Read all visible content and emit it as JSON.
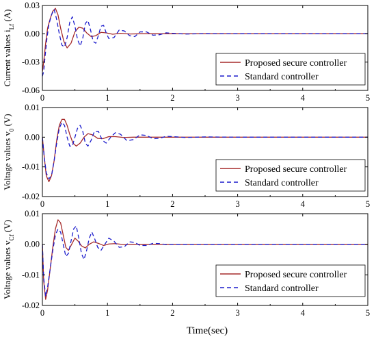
{
  "figure": {
    "xlabel": "Time(sec)"
  },
  "chart_data": [
    {
      "type": "line",
      "ylabel_main": "Current values i",
      "ylabel_sub": "Lf",
      "ylabel_unit": " (A)",
      "xlim": [
        0,
        5
      ],
      "ylim": [
        -0.06,
        0.03
      ],
      "x_ticks": [
        0,
        1,
        2,
        3,
        4,
        5
      ],
      "y_ticks": [
        {
          "value": 0.03,
          "label": "0.03"
        },
        {
          "value": 0.0,
          "label": "0.00"
        },
        {
          "value": -0.03,
          "label": "-0.03"
        },
        {
          "value": -0.06,
          "label": "-0.06"
        }
      ],
      "legend_position": "right",
      "series": [
        {
          "name": "Proposed secure controller",
          "color": "#a52a2a",
          "dash": "solid",
          "x": [
            0,
            0.02,
            0.05,
            0.08,
            0.12,
            0.16,
            0.2,
            0.24,
            0.28,
            0.33,
            0.38,
            0.44,
            0.5,
            0.56,
            0.62,
            0.68,
            0.75,
            0.82,
            0.9,
            0.98,
            1.08,
            1.2,
            1.35,
            1.5,
            1.8,
            2.2,
            3.0,
            4.0,
            5.0
          ],
          "y": [
            -0.04,
            -0.03,
            -0.01,
            0.006,
            0.016,
            0.024,
            0.027,
            0.02,
            0.006,
            -0.008,
            -0.015,
            -0.01,
            0.002,
            0.007,
            0.006,
            0.001,
            -0.003,
            -0.002,
            0.0015,
            0.001,
            -0.0005,
            0.0005,
            -0.0002,
            0.0,
            0.0,
            0.0,
            0.0,
            0.0,
            0.0
          ]
        },
        {
          "name": "Standard controller",
          "color": "#1c1ccc",
          "dash": "dashed",
          "x": [
            0,
            0.02,
            0.04,
            0.07,
            0.1,
            0.14,
            0.18,
            0.22,
            0.26,
            0.3,
            0.34,
            0.38,
            0.42,
            0.46,
            0.5,
            0.54,
            0.58,
            0.62,
            0.66,
            0.7,
            0.74,
            0.78,
            0.82,
            0.86,
            0.9,
            0.94,
            0.98,
            1.02,
            1.1,
            1.18,
            1.26,
            1.34,
            1.42,
            1.5,
            1.6,
            1.7,
            1.8,
            1.9,
            2.0,
            2.2,
            2.5,
            3.0,
            4.0,
            5.0
          ],
          "y": [
            -0.045,
            -0.04,
            -0.025,
            -0.005,
            0.01,
            0.02,
            0.026,
            0.015,
            0.0,
            -0.012,
            -0.014,
            -0.004,
            0.012,
            0.018,
            0.008,
            -0.006,
            -0.013,
            -0.005,
            0.011,
            0.014,
            0.004,
            -0.008,
            -0.01,
            -0.002,
            0.008,
            0.009,
            0.001,
            -0.005,
            -0.004,
            0.004,
            0.003,
            -0.002,
            -0.003,
            0.002,
            0.002,
            -0.0015,
            -0.001,
            0.001,
            0.0005,
            -0.0003,
            0.0002,
            0.0,
            0.0,
            0.0
          ]
        }
      ]
    },
    {
      "type": "line",
      "ylabel_main": "Voltage values v",
      "ylabel_sub": "0",
      "ylabel_unit": " (V)",
      "xlim": [
        0,
        5
      ],
      "ylim": [
        -0.02,
        0.01
      ],
      "x_ticks": [
        0,
        1,
        2,
        3,
        4,
        5
      ],
      "y_ticks": [
        {
          "value": 0.01,
          "label": "0.01"
        },
        {
          "value": 0.0,
          "label": "0.00"
        },
        {
          "value": -0.01,
          "label": "-0.01"
        },
        {
          "value": -0.02,
          "label": "-0.02"
        }
      ],
      "legend_position": "lower-right",
      "series": [
        {
          "name": "Proposed secure controller",
          "color": "#a52a2a",
          "dash": "solid",
          "x": [
            0,
            0.03,
            0.06,
            0.1,
            0.14,
            0.18,
            0.22,
            0.26,
            0.3,
            0.34,
            0.38,
            0.42,
            0.47,
            0.52,
            0.58,
            0.64,
            0.7,
            0.77,
            0.85,
            0.93,
            1.02,
            1.12,
            1.25,
            1.4,
            1.6,
            2.0,
            3.0,
            4.0,
            5.0
          ],
          "y": [
            0.0,
            -0.007,
            -0.013,
            -0.015,
            -0.013,
            -0.008,
            -0.001,
            0.004,
            0.006,
            0.006,
            0.004,
            0.001,
            -0.002,
            -0.003,
            -0.002,
            0.0,
            0.0012,
            0.0008,
            -0.0004,
            -0.0005,
            0.0002,
            0.0002,
            -0.0001,
            0.0,
            0.0,
            0.0,
            0.0,
            0.0,
            0.0
          ]
        },
        {
          "name": "Standard controller",
          "color": "#1c1ccc",
          "dash": "dashed",
          "x": [
            0,
            0.03,
            0.06,
            0.1,
            0.14,
            0.18,
            0.22,
            0.26,
            0.3,
            0.34,
            0.38,
            0.42,
            0.46,
            0.5,
            0.54,
            0.58,
            0.62,
            0.66,
            0.7,
            0.75,
            0.8,
            0.86,
            0.92,
            0.98,
            1.05,
            1.12,
            1.2,
            1.3,
            1.4,
            1.5,
            1.6,
            1.7,
            1.8,
            1.9,
            2.0,
            2.2,
            2.5,
            3.0,
            4.0,
            5.0
          ],
          "y": [
            0.0,
            -0.007,
            -0.012,
            -0.014,
            -0.013,
            -0.008,
            -0.002,
            0.003,
            0.005,
            0.004,
            0.0,
            -0.003,
            -0.003,
            0.0,
            0.003,
            0.004,
            0.002,
            -0.002,
            -0.003,
            -0.001,
            0.002,
            0.002,
            -0.001,
            -0.002,
            0.0,
            0.0015,
            0.001,
            -0.0012,
            -0.0008,
            0.0008,
            0.0006,
            -0.0005,
            -0.0004,
            0.0003,
            0.0002,
            -0.0001,
            0.0001,
            0.0,
            0.0,
            0.0
          ]
        }
      ]
    },
    {
      "type": "line",
      "ylabel_main": "Voltage values v",
      "ylabel_sub": "Cf",
      "ylabel_unit": " (V)",
      "xlim": [
        0,
        5
      ],
      "ylim": [
        -0.02,
        0.01
      ],
      "x_ticks": [
        0,
        1,
        2,
        3,
        4,
        5
      ],
      "y_ticks": [
        {
          "value": 0.01,
          "label": "0.01"
        },
        {
          "value": 0.0,
          "label": "0.00"
        },
        {
          "value": -0.01,
          "label": "-0.01"
        },
        {
          "value": -0.02,
          "label": "-0.02"
        }
      ],
      "legend_position": "lower-right",
      "series": [
        {
          "name": "Proposed secure controller",
          "color": "#a52a2a",
          "dash": "solid",
          "x": [
            0,
            0.02,
            0.05,
            0.08,
            0.12,
            0.16,
            0.2,
            0.24,
            0.28,
            0.32,
            0.36,
            0.4,
            0.45,
            0.5,
            0.55,
            0.6,
            0.66,
            0.72,
            0.79,
            0.86,
            0.94,
            1.02,
            1.12,
            1.25,
            1.4,
            1.6,
            2.0,
            3.0,
            4.0,
            5.0
          ],
          "y": [
            0.0,
            -0.012,
            -0.018,
            -0.015,
            -0.008,
            -0.001,
            0.005,
            0.008,
            0.007,
            0.003,
            -0.001,
            -0.002,
            0.0,
            0.002,
            0.001,
            -0.0005,
            -0.0012,
            0.0,
            0.0008,
            0.0003,
            -0.0004,
            0.0001,
            0.0002,
            -0.0001,
            0.0,
            0.0,
            0.0,
            0.0,
            0.0,
            0.0
          ]
        },
        {
          "name": "Standard controller",
          "color": "#1c1ccc",
          "dash": "dashed",
          "x": [
            0,
            0.02,
            0.05,
            0.08,
            0.12,
            0.16,
            0.2,
            0.24,
            0.28,
            0.32,
            0.36,
            0.4,
            0.44,
            0.48,
            0.52,
            0.56,
            0.6,
            0.64,
            0.68,
            0.72,
            0.76,
            0.8,
            0.85,
            0.9,
            0.96,
            1.02,
            1.1,
            1.18,
            1.26,
            1.34,
            1.42,
            1.5,
            1.6,
            1.7,
            1.8,
            1.9,
            2.0,
            2.2,
            2.5,
            3.0,
            4.0,
            5.0
          ],
          "y": [
            0.0,
            -0.011,
            -0.017,
            -0.014,
            -0.008,
            -0.002,
            0.003,
            0.005,
            0.004,
            0.0,
            -0.004,
            -0.003,
            0.001,
            0.005,
            0.006,
            0.002,
            -0.003,
            -0.005,
            -0.002,
            0.002,
            0.004,
            0.002,
            -0.001,
            -0.002,
            0.0,
            0.002,
            0.001,
            -0.001,
            -0.0008,
            0.0008,
            0.0006,
            -0.0004,
            -0.0004,
            0.0003,
            0.0002,
            -0.0001,
            0.0,
            0.0,
            0.0,
            0.0,
            0.0,
            0.0
          ]
        }
      ]
    }
  ]
}
